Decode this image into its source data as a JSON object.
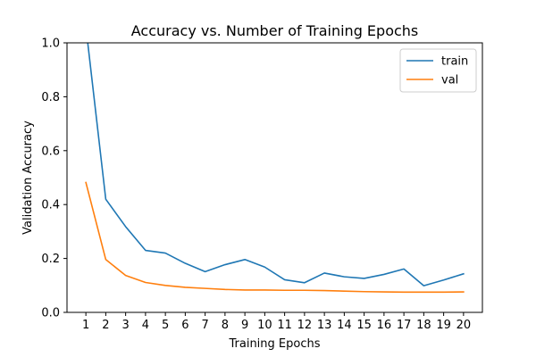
{
  "chart_data": {
    "type": "line",
    "title": "Accuracy vs. Number of Training Epochs",
    "xlabel": "Training Epochs",
    "ylabel": "Validation Accuracy",
    "x": [
      1,
      2,
      3,
      4,
      5,
      6,
      7,
      8,
      9,
      10,
      11,
      12,
      13,
      14,
      15,
      16,
      17,
      18,
      19,
      20
    ],
    "xticks": [
      "1",
      "2",
      "3",
      "4",
      "5",
      "6",
      "7",
      "8",
      "9",
      "10",
      "11",
      "12",
      "13",
      "14",
      "15",
      "16",
      "17",
      "18",
      "19",
      "20"
    ],
    "xlim": [
      0.05,
      20.95
    ],
    "ylim": [
      0.0,
      1.0
    ],
    "yticks": [
      "0.0",
      "0.2",
      "0.4",
      "0.6",
      "0.8",
      "1.0"
    ],
    "grid": false,
    "legend_position": "top-right",
    "series": [
      {
        "name": "train",
        "color": "#1f77b4",
        "values": [
          1.06,
          0.42,
          0.318,
          0.23,
          0.22,
          0.182,
          0.151,
          0.177,
          0.196,
          0.168,
          0.121,
          0.11,
          0.146,
          0.132,
          0.126,
          0.141,
          0.161,
          0.099,
          0.12,
          0.143
        ]
      },
      {
        "name": "val",
        "color": "#ff7f0e",
        "values": [
          0.482,
          0.196,
          0.137,
          0.111,
          0.1,
          0.093,
          0.089,
          0.085,
          0.083,
          0.083,
          0.082,
          0.082,
          0.081,
          0.079,
          0.077,
          0.076,
          0.075,
          0.075,
          0.075,
          0.076
        ]
      }
    ]
  }
}
